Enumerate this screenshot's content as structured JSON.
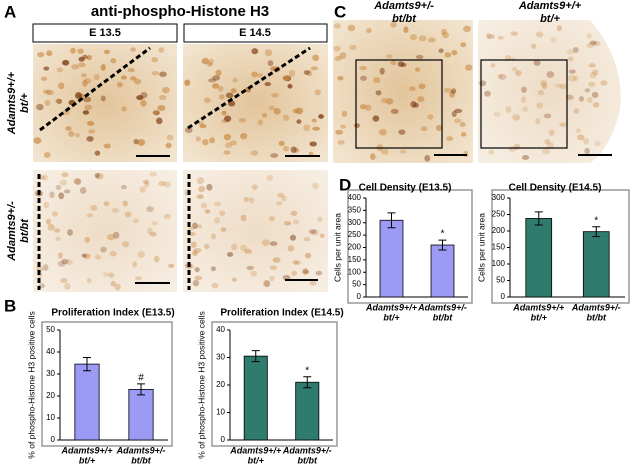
{
  "panels": {
    "A": {
      "label": "A",
      "title": "anti-phospho-Histone H3",
      "columns": [
        "E 13.5",
        "E 14.5"
      ],
      "rows": [
        [
          "Adamts9+/+",
          "bt/+"
        ],
        [
          "Adamts9+/-",
          "bt/bt"
        ]
      ]
    },
    "B": {
      "label": "B"
    },
    "C": {
      "label": "C",
      "columns": [
        [
          "Adamts9+/-",
          "bt/bt"
        ],
        [
          "Adamts9+/+",
          "bt/+"
        ]
      ]
    },
    "D": {
      "label": "D"
    }
  },
  "chart_data": [
    {
      "type": "bar",
      "title": "Proliferation Index (E13.5)",
      "y_label": "% of phospho-Histone H3 positive cells",
      "categories": [
        [
          "Adamts9+/+",
          "bt/+"
        ],
        [
          "Adamts9+/-",
          "bt/bt"
        ]
      ],
      "values": [
        34.5,
        23
      ],
      "errors": [
        3,
        2.5
      ],
      "color": "#9b9bf5",
      "annotations": [
        {
          "category": 1,
          "label": "#"
        }
      ],
      "ylim": [
        0,
        50
      ],
      "yticks": [
        0,
        10,
        20,
        30,
        40,
        50
      ]
    },
    {
      "type": "bar",
      "title": "Proliferation Index (E14.5)",
      "y_label": "% of phospho-Histone H3 positive cells",
      "categories": [
        [
          "Adamts9+/+",
          "bt/+"
        ],
        [
          "Adamts9+/-",
          "bt/bt"
        ]
      ],
      "values": [
        30.5,
        21
      ],
      "errors": [
        2,
        2
      ],
      "color": "#2f7c6e",
      "annotations": [
        {
          "category": 1,
          "label": "*"
        }
      ],
      "ylim": [
        0,
        40
      ],
      "yticks": [
        0,
        10,
        20,
        30,
        40
      ]
    },
    {
      "type": "bar",
      "title": "Cell Density (E13.5)",
      "y_label": "Cells per unit area",
      "categories": [
        [
          "Adamts9+/+",
          "bt/+"
        ],
        [
          "Adamts9+/-",
          "bt/bt"
        ]
      ],
      "values": [
        310,
        210
      ],
      "errors": [
        30,
        20
      ],
      "color": "#9b9bf5",
      "annotations": [
        {
          "category": 1,
          "label": "*"
        }
      ],
      "ylim": [
        0,
        400
      ],
      "yticks": [
        0,
        50,
        100,
        150,
        200,
        250,
        300,
        350,
        400
      ]
    },
    {
      "type": "bar",
      "title": "Cell Density (E14.5)",
      "y_label": "Cells per unit area",
      "categories": [
        [
          "Adamts9+/+",
          "bt/+"
        ],
        [
          "Adamts9+/-",
          "bt/bt"
        ]
      ],
      "values": [
        238,
        198
      ],
      "errors": [
        20,
        15
      ],
      "color": "#2f7c6e",
      "annotations": [
        {
          "category": 1,
          "label": "*"
        }
      ],
      "ylim": [
        0,
        300
      ],
      "yticks": [
        0,
        50,
        100,
        150,
        200,
        250,
        300
      ]
    }
  ]
}
